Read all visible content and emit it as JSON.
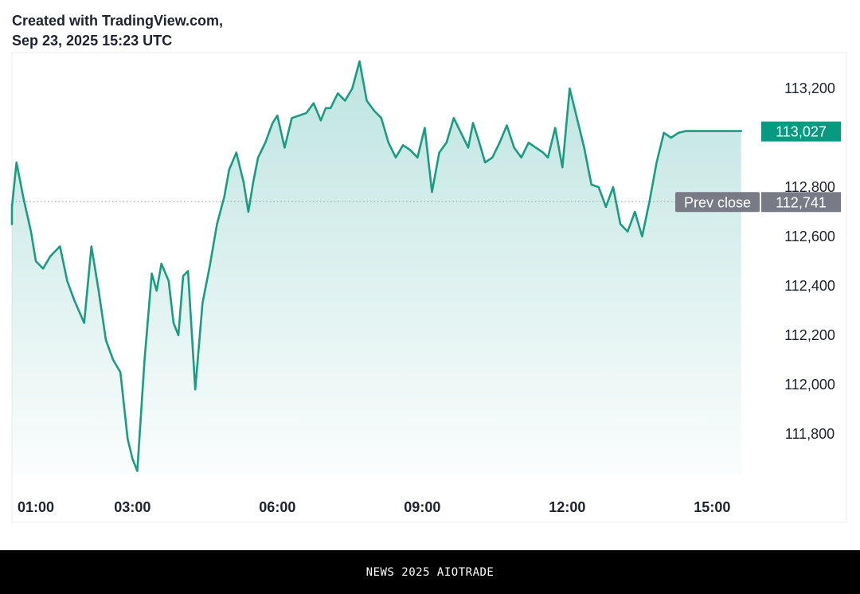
{
  "header": {
    "line1": "Created with TradingView.com,",
    "line2": "Sep 23, 2025 15:23 UTC"
  },
  "footer": {
    "text": "NEWS 2025 AIOTRADE"
  },
  "colors": {
    "line": "#1a9c82",
    "fill": "#26a69a",
    "last_price_tag": "#089981",
    "prev_close_tag": "#787b86"
  },
  "chart_data": {
    "type": "area",
    "x_ticks": [
      "01:00",
      "03:00",
      "06:00",
      "09:00",
      "12:00",
      "15:00"
    ],
    "y_ticks": [
      "113,200",
      "112,800",
      "112,600",
      "112,400",
      "112,200",
      "112,000",
      "111,800"
    ],
    "y_tick_values": [
      113200,
      112800,
      112600,
      112400,
      112200,
      112000,
      111800
    ],
    "ylim": [
      111650,
      113330
    ],
    "last_price": {
      "label": "113,027",
      "value": 113027
    },
    "prev_close": {
      "label": "Prev close",
      "value_label": "112,741",
      "value": 112741
    },
    "x_hours_start": 0.25,
    "x_hours_end": 15.6,
    "series": [
      {
        "x": [
          0.25,
          0.35,
          0.45,
          0.6,
          0.75,
          0.9,
          1.0,
          1.15,
          1.3,
          1.5,
          1.65,
          1.8,
          2.0,
          2.15,
          2.3,
          2.45,
          2.6,
          2.75,
          2.9,
          3.0,
          3.1,
          3.25,
          3.4,
          3.5,
          3.6,
          3.75,
          3.85,
          3.95,
          4.05,
          4.15,
          4.3,
          4.45,
          4.6,
          4.75,
          4.9,
          5.0,
          5.15,
          5.3,
          5.4,
          5.5,
          5.6,
          5.75,
          5.9,
          6.0,
          6.15,
          6.3,
          6.45,
          6.6,
          6.75,
          6.9,
          7.0,
          7.1,
          7.25,
          7.4,
          7.55,
          7.7,
          7.85,
          8.0,
          8.15,
          8.3,
          8.45,
          8.6,
          8.75,
          8.9,
          9.05,
          9.2,
          9.35,
          9.5,
          9.65,
          9.8,
          9.95,
          10.05,
          10.15,
          10.3,
          10.45,
          10.6,
          10.75,
          10.9,
          11.05,
          11.2,
          11.35,
          11.5,
          11.6,
          11.75,
          11.9,
          12.05,
          12.2,
          12.35,
          12.5,
          12.65,
          12.8,
          12.95,
          13.1,
          13.25,
          13.4,
          13.55,
          13.7,
          13.85,
          14.0,
          14.15,
          14.3,
          14.45,
          14.6,
          14.75,
          14.9,
          15.0,
          15.1,
          15.25,
          15.35,
          15.45,
          15.55,
          15.6
        ],
        "y": [
          112730,
          112650,
          112720,
          112900,
          112750,
          112620,
          112500,
          112470,
          112520,
          112560,
          112420,
          112340,
          112250,
          112560,
          112380,
          112180,
          112100,
          112050,
          111780,
          111700,
          111650,
          112100,
          112450,
          112380,
          112490,
          112420,
          112250,
          112200,
          112440,
          112460,
          111980,
          112330,
          112480,
          112650,
          112760,
          112870,
          112940,
          112820,
          112700,
          112820,
          112920,
          112980,
          113060,
          113090,
          112960,
          113080,
          113090,
          113100,
          113140,
          113070,
          113120,
          113120,
          113180,
          113150,
          113200,
          113310,
          113150,
          113110,
          113080,
          112980,
          112920,
          112970,
          112950,
          112920,
          113040,
          112780,
          112940,
          112980,
          113080,
          113020,
          112960,
          113060,
          113000,
          112900,
          112920,
          112980,
          113050,
          112960,
          112920,
          112980,
          112960,
          112940,
          112920,
          113040,
          112880,
          113200,
          113080,
          112960,
          112810,
          112800,
          112720,
          112800,
          112650,
          112620,
          112700,
          112600,
          112740,
          112900,
          113020,
          113000,
          113020,
          113027,
          113027,
          113027,
          113027,
          113027,
          113027,
          113027,
          113027,
          113027,
          113027,
          113027
        ]
      }
    ],
    "grid": false,
    "legend": "none"
  }
}
